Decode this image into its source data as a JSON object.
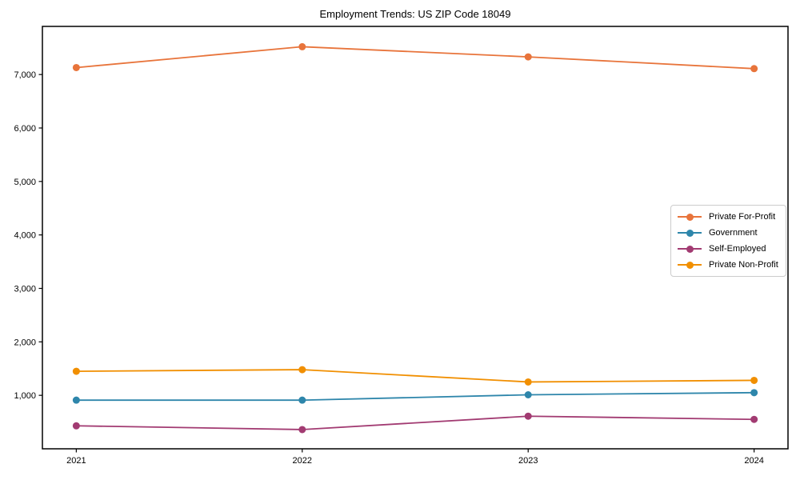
{
  "title": "Employment Trends: US ZIP Code 18049",
  "chart_data": {
    "type": "line",
    "title": "Employment Trends: US ZIP Code 18049",
    "xlabel": "",
    "ylabel": "",
    "x": [
      2021,
      2022,
      2023,
      2024
    ],
    "x_tick_labels": [
      "2021",
      "2022",
      "2023",
      "2024"
    ],
    "xlim": [
      2020.85,
      2024.15
    ],
    "ylim": [
      0,
      7900
    ],
    "y_ticks": [
      1000,
      2000,
      3000,
      4000,
      5000,
      6000,
      7000
    ],
    "y_tick_labels": [
      "1,000",
      "2,000",
      "3,000",
      "4,000",
      "5,000",
      "6,000",
      "7,000"
    ],
    "grid": false,
    "marker": "circle",
    "legend_position": "right-middle",
    "series": [
      {
        "name": "Private For-Profit",
        "color": "#E8743B",
        "values": [
          7130,
          7520,
          7330,
          7110
        ]
      },
      {
        "name": "Government",
        "color": "#2E86AB",
        "values": [
          910,
          910,
          1010,
          1050
        ]
      },
      {
        "name": "Self-Employed",
        "color": "#A23B72",
        "values": [
          430,
          360,
          610,
          550
        ]
      },
      {
        "name": "Private Non-Profit",
        "color": "#F18F01",
        "values": [
          1450,
          1480,
          1250,
          1280
        ]
      }
    ]
  }
}
